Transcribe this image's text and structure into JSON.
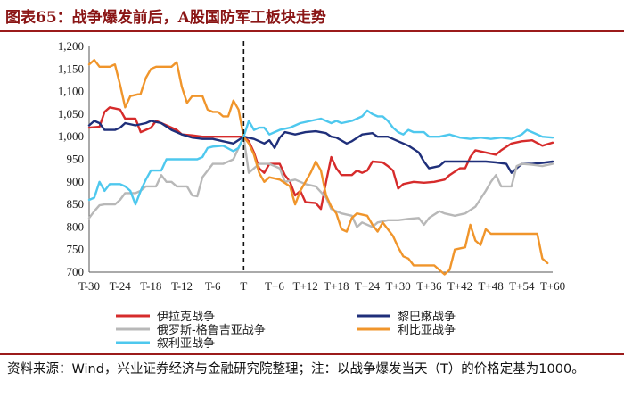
{
  "title": "图表65：战争爆发前后，A股国防军工板块走势",
  "note": "资料来源：Wind，兴业证券经济与金融研究院整理；注：以战争爆发当天（T）的价格定基为1000。",
  "chart_data": {
    "type": "line",
    "title": "图表65：战争爆发前后，A股国防军工板块走势",
    "xlabel": "",
    "ylabel": "",
    "x_range": [
      -30,
      60
    ],
    "ylim": [
      700,
      1200
    ],
    "yticks": [
      700,
      750,
      800,
      850,
      900,
      950,
      1000,
      1050,
      1100,
      1150,
      1200
    ],
    "xtick_labels": [
      "T-30",
      "T-24",
      "T-18",
      "T-12",
      "T-6",
      "T",
      "T+6",
      "T+12",
      "T+18",
      "T+24",
      "T+30",
      "T+36",
      "T+42",
      "T+48",
      "T+54",
      "T+60"
    ],
    "xticks": [
      -30,
      -24,
      -18,
      -12,
      -6,
      0,
      6,
      12,
      18,
      24,
      30,
      36,
      42,
      48,
      54,
      60
    ],
    "event_line_x": 0,
    "series": [
      {
        "name": "伊拉克战争",
        "color": "#d62b2b",
        "points": [
          [
            -30,
            1020
          ],
          [
            -28,
            1022
          ],
          [
            -27,
            1055
          ],
          [
            -26,
            1065
          ],
          [
            -24,
            1060
          ],
          [
            -23,
            1040
          ],
          [
            -21,
            1040
          ],
          [
            -20,
            1010
          ],
          [
            -18,
            1020
          ],
          [
            -17,
            1035
          ],
          [
            -15,
            1025
          ],
          [
            -13,
            1015
          ],
          [
            -12,
            1005
          ],
          [
            -10,
            1003
          ],
          [
            -8,
            1000
          ],
          [
            -6,
            1000
          ],
          [
            -4,
            1000
          ],
          [
            -2,
            1000
          ],
          [
            0,
            1000
          ],
          [
            1,
            990
          ],
          [
            2,
            965
          ],
          [
            3,
            930
          ],
          [
            4,
            920
          ],
          [
            5,
            940
          ],
          [
            7,
            940
          ],
          [
            8,
            915
          ],
          [
            9,
            900
          ],
          [
            10,
            870
          ],
          [
            11,
            880
          ],
          [
            12,
            855
          ],
          [
            14,
            853
          ],
          [
            15,
            840
          ],
          [
            16,
            900
          ],
          [
            17,
            955
          ],
          [
            18,
            930
          ],
          [
            19,
            915
          ],
          [
            21,
            915
          ],
          [
            22,
            925
          ],
          [
            23,
            920
          ],
          [
            24,
            925
          ],
          [
            25,
            945
          ],
          [
            27,
            943
          ],
          [
            28,
            935
          ],
          [
            29,
            925
          ],
          [
            30,
            885
          ],
          [
            31,
            895
          ],
          [
            33,
            900
          ],
          [
            35,
            898
          ],
          [
            37,
            900
          ],
          [
            39,
            905
          ],
          [
            40,
            915
          ],
          [
            42,
            930
          ],
          [
            43,
            930
          ],
          [
            44,
            955
          ],
          [
            45,
            970
          ],
          [
            47,
            965
          ],
          [
            49,
            960
          ],
          [
            50,
            970
          ],
          [
            52,
            985
          ],
          [
            54,
            990
          ],
          [
            56,
            992
          ],
          [
            58,
            980
          ],
          [
            60,
            987
          ]
        ]
      },
      {
        "name": "黎巴嫩战争",
        "color": "#1f2f7a",
        "points": [
          [
            -30,
            1025
          ],
          [
            -29,
            1035
          ],
          [
            -28,
            1030
          ],
          [
            -27,
            1015
          ],
          [
            -25,
            1015
          ],
          [
            -24,
            1020
          ],
          [
            -23,
            1030
          ],
          [
            -21,
            1025
          ],
          [
            -19,
            1030
          ],
          [
            -18,
            1035
          ],
          [
            -16,
            1030
          ],
          [
            -14,
            1015
          ],
          [
            -12,
            1005
          ],
          [
            -10,
            998
          ],
          [
            -8,
            995
          ],
          [
            -6,
            995
          ],
          [
            -4,
            990
          ],
          [
            -2,
            985
          ],
          [
            0,
            1000
          ],
          [
            2,
            995
          ],
          [
            4,
            985
          ],
          [
            5,
            992
          ],
          [
            6,
            975
          ],
          [
            7,
            998
          ],
          [
            8,
            1010
          ],
          [
            10,
            1005
          ],
          [
            12,
            1010
          ],
          [
            14,
            1012
          ],
          [
            16,
            1008
          ],
          [
            17,
            1000
          ],
          [
            18,
            998
          ],
          [
            20,
            985
          ],
          [
            21,
            990
          ],
          [
            23,
            1005
          ],
          [
            25,
            1008
          ],
          [
            26,
            1000
          ],
          [
            28,
            1000
          ],
          [
            30,
            990
          ],
          [
            32,
            980
          ],
          [
            34,
            965
          ],
          [
            35,
            945
          ],
          [
            36,
            930
          ],
          [
            38,
            935
          ],
          [
            39,
            945
          ],
          [
            41,
            945
          ],
          [
            43,
            945
          ],
          [
            45,
            945
          ],
          [
            47,
            945
          ],
          [
            49,
            943
          ],
          [
            51,
            940
          ],
          [
            52,
            920
          ],
          [
            53,
            930
          ],
          [
            54,
            940
          ],
          [
            56,
            940
          ],
          [
            58,
            942
          ],
          [
            60,
            945
          ]
        ]
      },
      {
        "name": "俄罗斯-格鲁吉亚战争",
        "color": "#b8b8b8",
        "points": [
          [
            -30,
            820
          ],
          [
            -29,
            835
          ],
          [
            -28,
            848
          ],
          [
            -27,
            850
          ],
          [
            -25,
            850
          ],
          [
            -24,
            860
          ],
          [
            -23,
            875
          ],
          [
            -21,
            875
          ],
          [
            -20,
            880
          ],
          [
            -19,
            890
          ],
          [
            -17,
            890
          ],
          [
            -16,
            915
          ],
          [
            -15,
            900
          ],
          [
            -14,
            900
          ],
          [
            -13,
            890
          ],
          [
            -11,
            890
          ],
          [
            -10,
            870
          ],
          [
            -9,
            868
          ],
          [
            -8,
            910
          ],
          [
            -6,
            940
          ],
          [
            -4,
            940
          ],
          [
            -2,
            950
          ],
          [
            0,
            1000
          ],
          [
            1,
            920
          ],
          [
            3,
            940
          ],
          [
            5,
            940
          ],
          [
            7,
            930
          ],
          [
            8,
            900
          ],
          [
            10,
            905
          ],
          [
            12,
            895
          ],
          [
            14,
            890
          ],
          [
            16,
            865
          ],
          [
            17,
            840
          ],
          [
            18,
            835
          ],
          [
            19,
            830
          ],
          [
            21,
            825
          ],
          [
            22,
            800
          ],
          [
            23,
            810
          ],
          [
            25,
            800
          ],
          [
            26,
            810
          ],
          [
            28,
            815
          ],
          [
            30,
            815
          ],
          [
            32,
            818
          ],
          [
            34,
            820
          ],
          [
            35,
            805
          ],
          [
            36,
            820
          ],
          [
            38,
            835
          ],
          [
            39,
            830
          ],
          [
            41,
            825
          ],
          [
            43,
            830
          ],
          [
            45,
            845
          ],
          [
            47,
            880
          ],
          [
            48,
            900
          ],
          [
            49,
            915
          ],
          [
            50,
            890
          ],
          [
            52,
            890
          ],
          [
            53,
            935
          ],
          [
            54,
            940
          ],
          [
            56,
            938
          ],
          [
            58,
            935
          ],
          [
            60,
            940
          ]
        ]
      },
      {
        "name": "利比亚战争",
        "color": "#f0952b",
        "points": [
          [
            -30,
            1160
          ],
          [
            -29,
            1170
          ],
          [
            -28,
            1155
          ],
          [
            -26,
            1155
          ],
          [
            -25,
            1160
          ],
          [
            -24,
            1115
          ],
          [
            -23,
            1065
          ],
          [
            -22,
            1090
          ],
          [
            -20,
            1095
          ],
          [
            -19,
            1130
          ],
          [
            -18,
            1150
          ],
          [
            -17,
            1155
          ],
          [
            -14,
            1155
          ],
          [
            -13,
            1165
          ],
          [
            -12,
            1110
          ],
          [
            -11,
            1075
          ],
          [
            -10,
            1090
          ],
          [
            -8,
            1090
          ],
          [
            -7,
            1060
          ],
          [
            -6,
            1055
          ],
          [
            -5,
            1055
          ],
          [
            -4,
            1045
          ],
          [
            -3,
            1045
          ],
          [
            -2,
            1080
          ],
          [
            -1,
            1060
          ],
          [
            0,
            1000
          ],
          [
            1,
            985
          ],
          [
            2,
            960
          ],
          [
            3,
            920
          ],
          [
            4,
            900
          ],
          [
            5,
            910
          ],
          [
            7,
            905
          ],
          [
            9,
            890
          ],
          [
            10,
            850
          ],
          [
            11,
            880
          ],
          [
            13,
            920
          ],
          [
            14,
            945
          ],
          [
            15,
            925
          ],
          [
            16,
            870
          ],
          [
            17,
            845
          ],
          [
            18,
            830
          ],
          [
            19,
            795
          ],
          [
            20,
            790
          ],
          [
            21,
            820
          ],
          [
            22,
            830
          ],
          [
            24,
            825
          ],
          [
            25,
            805
          ],
          [
            26,
            790
          ],
          [
            27,
            810
          ],
          [
            29,
            780
          ],
          [
            30,
            755
          ],
          [
            31,
            735
          ],
          [
            32,
            730
          ],
          [
            33,
            715
          ],
          [
            35,
            715
          ],
          [
            37,
            715
          ],
          [
            38,
            705
          ],
          [
            39,
            695
          ],
          [
            40,
            705
          ],
          [
            41,
            750
          ],
          [
            43,
            755
          ],
          [
            44,
            805
          ],
          [
            45,
            770
          ],
          [
            46,
            760
          ],
          [
            47,
            795
          ],
          [
            48,
            785
          ],
          [
            50,
            785
          ],
          [
            52,
            785
          ],
          [
            54,
            785
          ],
          [
            56,
            785
          ],
          [
            57,
            785
          ],
          [
            58,
            730
          ],
          [
            59,
            720
          ]
        ]
      },
      {
        "name": "叙利亚战争",
        "color": "#4ec8ee",
        "points": [
          [
            -30,
            860
          ],
          [
            -29,
            865
          ],
          [
            -28,
            900
          ],
          [
            -27,
            880
          ],
          [
            -26,
            895
          ],
          [
            -24,
            895
          ],
          [
            -23,
            890
          ],
          [
            -22,
            880
          ],
          [
            -21,
            850
          ],
          [
            -20,
            880
          ],
          [
            -19,
            905
          ],
          [
            -18,
            925
          ],
          [
            -16,
            925
          ],
          [
            -15,
            950
          ],
          [
            -13,
            950
          ],
          [
            -11,
            950
          ],
          [
            -9,
            950
          ],
          [
            -8,
            955
          ],
          [
            -7,
            975
          ],
          [
            -6,
            978
          ],
          [
            -4,
            980
          ],
          [
            -2,
            968
          ],
          [
            -1,
            975
          ],
          [
            0,
            1000
          ],
          [
            1,
            1035
          ],
          [
            2,
            1015
          ],
          [
            3,
            1020
          ],
          [
            4,
            1020
          ],
          [
            5,
            1005
          ],
          [
            6,
            1010
          ],
          [
            7,
            1015
          ],
          [
            9,
            1020
          ],
          [
            11,
            1030
          ],
          [
            13,
            1035
          ],
          [
            15,
            1040
          ],
          [
            17,
            1030
          ],
          [
            18,
            1035
          ],
          [
            19,
            1030
          ],
          [
            21,
            1035
          ],
          [
            22,
            1040
          ],
          [
            23,
            1045
          ],
          [
            24,
            1058
          ],
          [
            25,
            1050
          ],
          [
            26,
            1045
          ],
          [
            27,
            1045
          ],
          [
            28,
            1035
          ],
          [
            29,
            1020
          ],
          [
            30,
            1010
          ],
          [
            31,
            1005
          ],
          [
            32,
            1015
          ],
          [
            33,
            1010
          ],
          [
            35,
            1010
          ],
          [
            36,
            1000
          ],
          [
            38,
            1000
          ],
          [
            40,
            1005
          ],
          [
            42,
            998
          ],
          [
            44,
            995
          ],
          [
            46,
            998
          ],
          [
            48,
            995
          ],
          [
            50,
            998
          ],
          [
            52,
            995
          ],
          [
            54,
            1005
          ],
          [
            55,
            1015
          ],
          [
            56,
            1010
          ],
          [
            58,
            1000
          ],
          [
            60,
            998
          ]
        ]
      }
    ]
  }
}
